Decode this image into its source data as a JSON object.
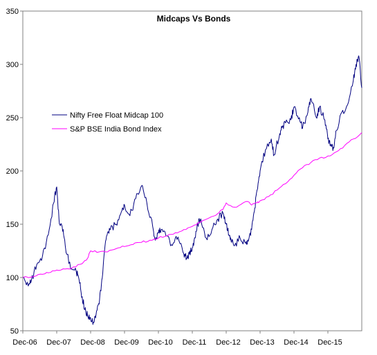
{
  "chart_data": {
    "type": "line",
    "title": "Midcaps Vs Bonds",
    "xlabel": "",
    "ylabel": "",
    "x_ticks": [
      "Dec-06",
      "Dec-07",
      "Dec-08",
      "Dec-09",
      "Dec-10",
      "Dec-11",
      "Dec-12",
      "Dec-13",
      "Dec-14",
      "Dec-15"
    ],
    "ylim": [
      50,
      350
    ],
    "y_ticks": [
      50,
      100,
      150,
      200,
      250,
      300,
      350
    ],
    "grid": false,
    "legend_position": "upper-left",
    "series": [
      {
        "name": "Nifty Free Float Midcap 100",
        "color": "#000080",
        "x": [
          2006.92,
          2007.08,
          2007.17,
          2007.33,
          2007.5,
          2007.67,
          2007.83,
          2007.92,
          2008.0,
          2008.08,
          2008.17,
          2008.33,
          2008.5,
          2008.58,
          2008.67,
          2008.75,
          2008.83,
          2008.92,
          2009.0,
          2009.08,
          2009.17,
          2009.25,
          2009.33,
          2009.42,
          2009.5,
          2009.67,
          2009.83,
          2009.92,
          2010.08,
          2010.25,
          2010.42,
          2010.58,
          2010.75,
          2010.83,
          2010.92,
          2011.0,
          2011.17,
          2011.33,
          2011.5,
          2011.67,
          2011.75,
          2011.83,
          2011.92,
          2012.0,
          2012.08,
          2012.17,
          2012.33,
          2012.5,
          2012.67,
          2012.83,
          2012.92,
          2013.0,
          2013.08,
          2013.17,
          2013.33,
          2013.5,
          2013.58,
          2013.67,
          2013.75,
          2013.83,
          2013.92,
          2014.08,
          2014.25,
          2014.33,
          2014.5,
          2014.58,
          2014.67,
          2014.83,
          2014.92,
          2015.08,
          2015.17,
          2015.33,
          2015.42,
          2015.58,
          2015.67,
          2015.83,
          2015.92,
          2016.0,
          2016.08,
          2016.17,
          2016.33,
          2016.5,
          2016.67,
          2016.75,
          2016.83,
          2016.92
        ],
        "values": [
          100,
          92,
          97,
          112,
          120,
          140,
          170,
          185,
          150,
          148,
          130,
          108,
          105,
          98,
          82,
          70,
          64,
          62,
          58,
          65,
          75,
          98,
          125,
          142,
          145,
          150,
          162,
          168,
          158,
          174,
          186,
          170,
          148,
          135,
          142,
          145,
          139,
          130,
          138,
          122,
          118,
          122,
          128,
          137,
          150,
          155,
          137,
          145,
          155,
          160,
          150,
          140,
          133,
          130,
          137,
          132,
          135,
          145,
          162,
          182,
          200,
          220,
          230,
          215,
          235,
          242,
          245,
          248,
          260,
          250,
          240,
          255,
          268,
          250,
          260,
          248,
          230,
          225,
          222,
          238,
          255,
          262,
          285,
          300,
          308,
          278
        ]
      },
      {
        "name": "S&P BSE India Bond Index",
        "color": "#ff00ff",
        "x": [
          2006.92,
          2007.25,
          2007.5,
          2007.75,
          2007.92,
          2008.17,
          2008.42,
          2008.67,
          2008.83,
          2008.92,
          2009.17,
          2009.42,
          2009.67,
          2009.92,
          2010.17,
          2010.42,
          2010.67,
          2010.92,
          2011.17,
          2011.42,
          2011.67,
          2011.92,
          2012.17,
          2012.42,
          2012.67,
          2012.83,
          2012.92,
          2013.17,
          2013.42,
          2013.58,
          2013.67,
          2013.83,
          2013.92,
          2014.17,
          2014.42,
          2014.67,
          2014.92,
          2015.17,
          2015.42,
          2015.67,
          2015.92,
          2016.17,
          2016.42,
          2016.67,
          2016.92
        ],
        "values": [
          100,
          101,
          103,
          105,
          107,
          108,
          110,
          113,
          118,
          125,
          124,
          124,
          127,
          129,
          131,
          133,
          135,
          137,
          139,
          142,
          145,
          148,
          152,
          156,
          160,
          164,
          170,
          166,
          170,
          171,
          168,
          170,
          172,
          176,
          182,
          188,
          196,
          203,
          208,
          212,
          214,
          218,
          224,
          230,
          236
        ]
      }
    ]
  }
}
